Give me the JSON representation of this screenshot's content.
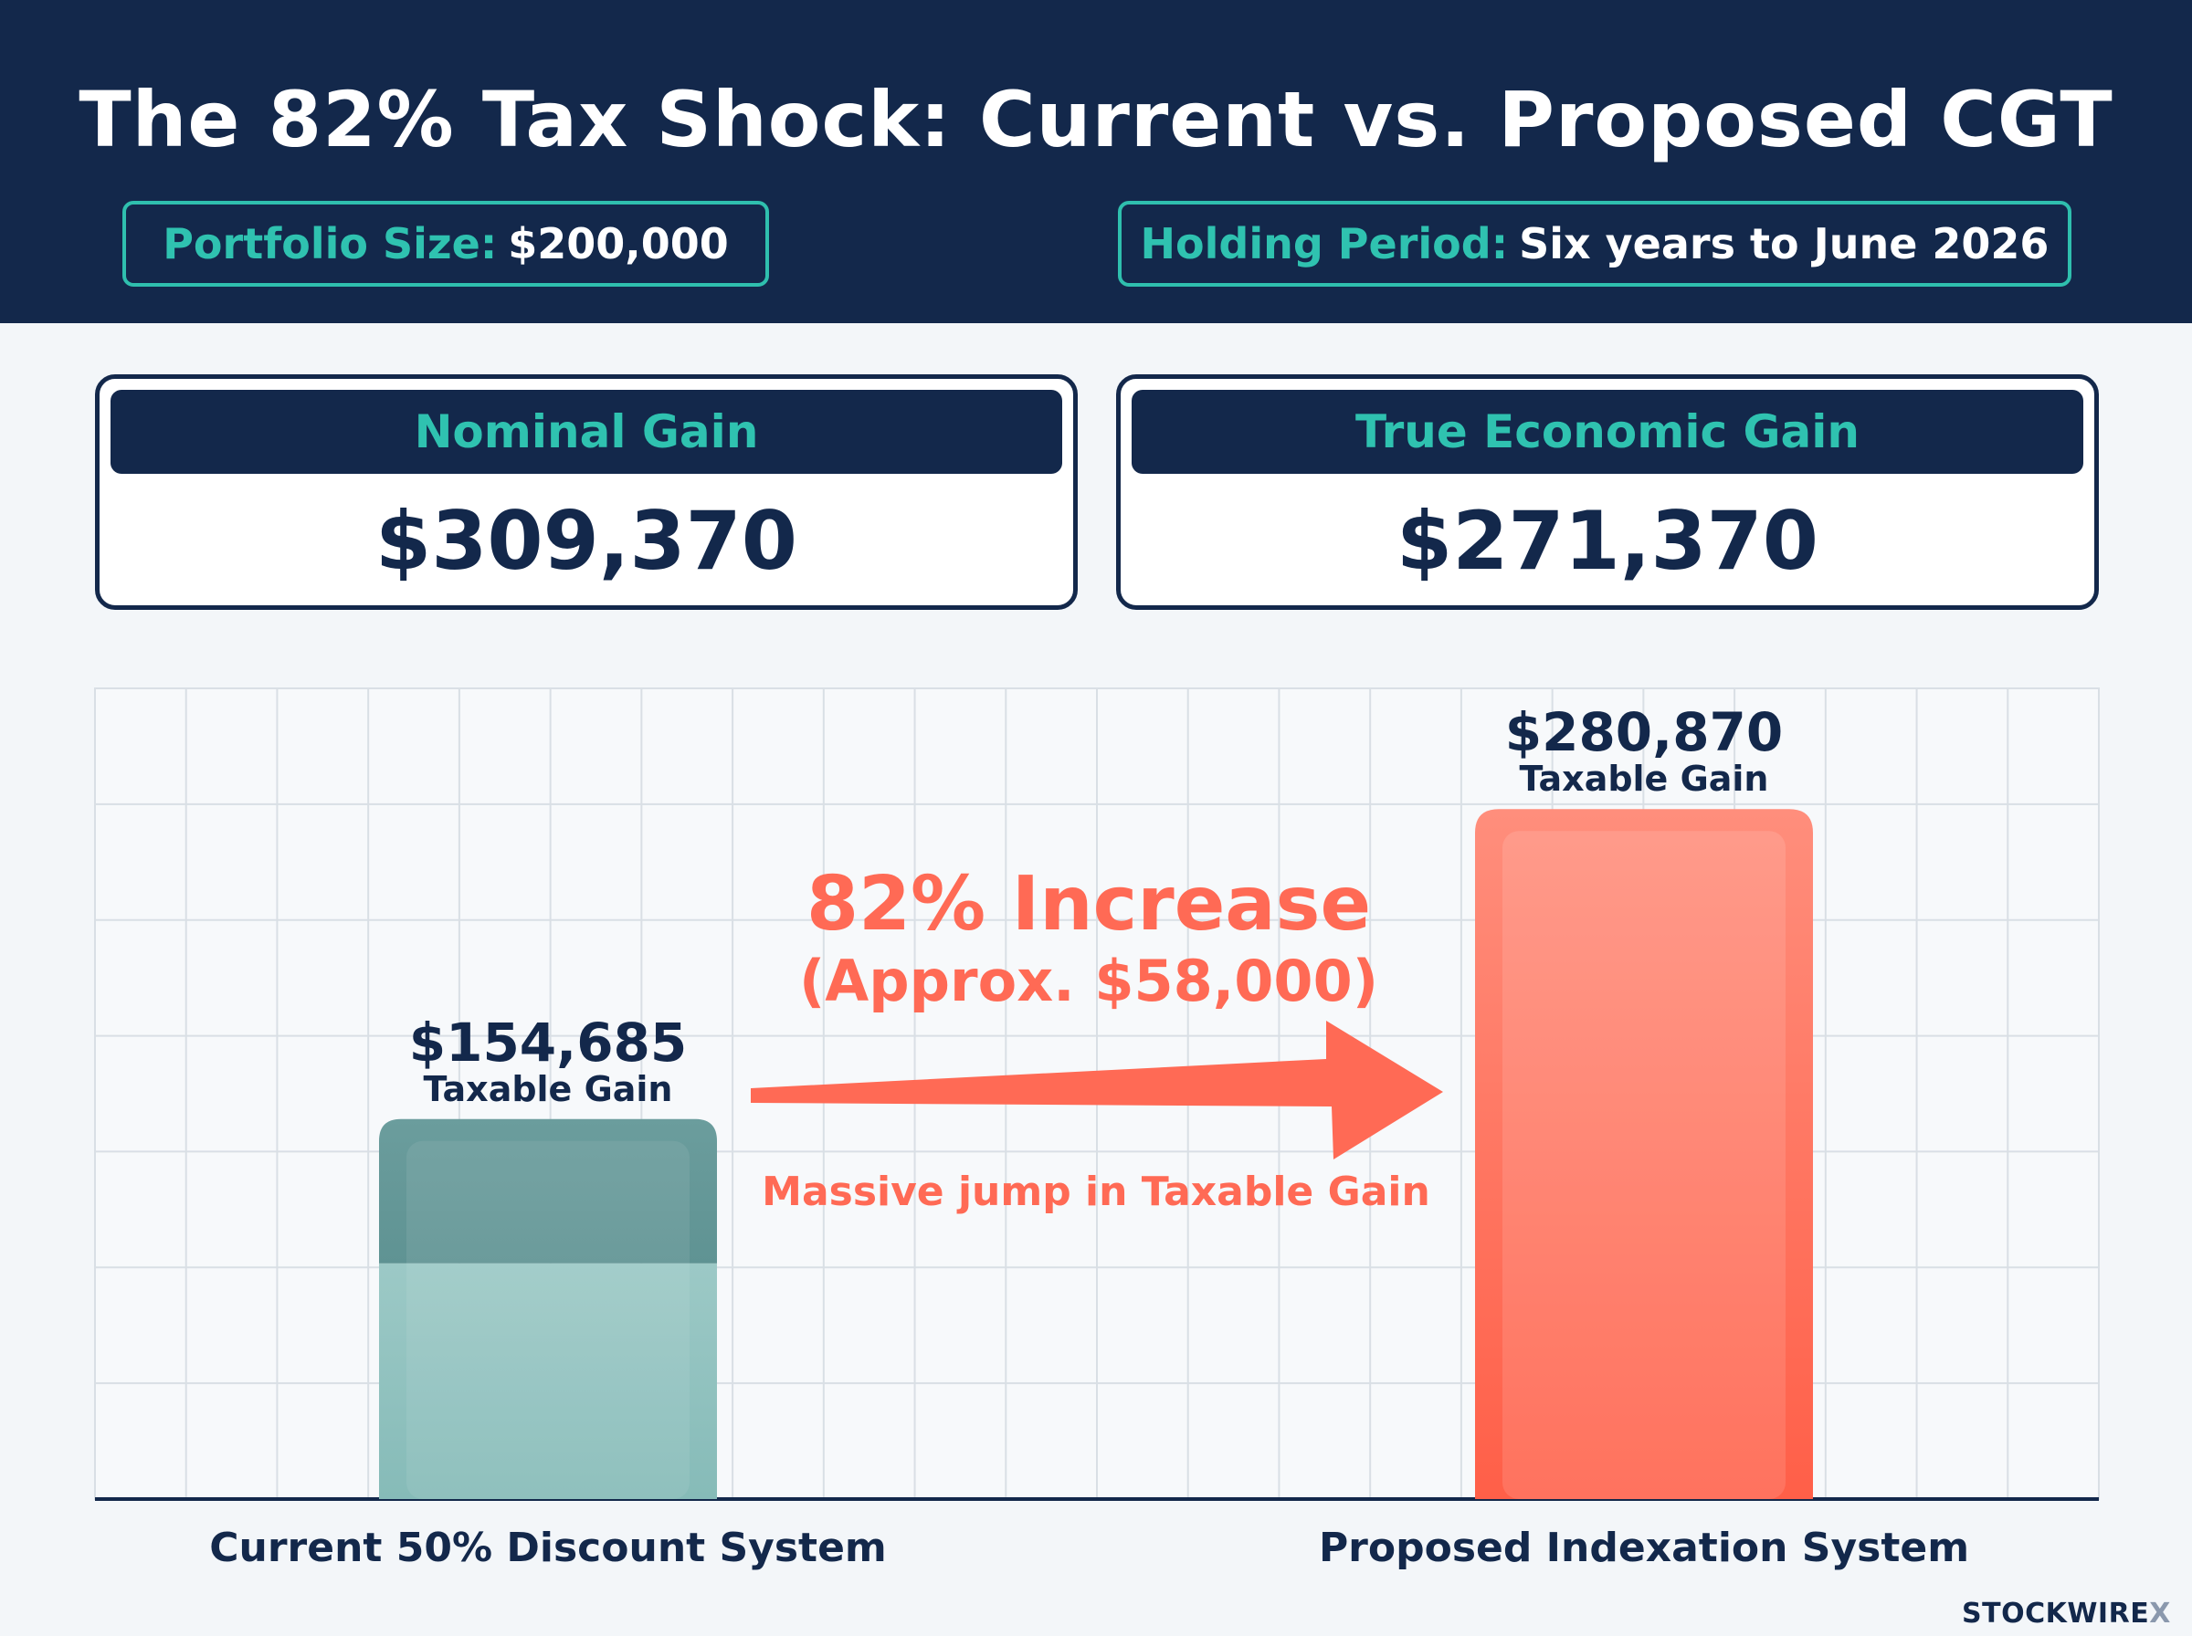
{
  "title": "The 82% Tax Shock: Current vs. Proposed CGT",
  "info": {
    "portfolio_label": "Portfolio Size:",
    "portfolio_value": "$200,000",
    "holding_label": "Holding Period:",
    "holding_value": "Six years to June 2026"
  },
  "cards": [
    {
      "label": "Nominal Gain",
      "value": "$309,370"
    },
    {
      "label": "True Economic Gain",
      "value": "$271,370"
    }
  ],
  "chart_data": {
    "type": "bar",
    "categories": [
      "Current 50% Discount System",
      "Proposed Indexation System"
    ],
    "values": [
      154685,
      280870
    ],
    "value_labels": [
      "$154,685",
      "$280,870"
    ],
    "bar_sublabel": "Taxable Gain",
    "ylim": [
      0,
      330000
    ],
    "grid": true,
    "colors": [
      "#6fa3a3",
      "#ff6a55"
    ],
    "annotation": {
      "headline": "82% Increase",
      "sub": "(Approx. $58,000)",
      "note": "Massive jump in Taxable Gain",
      "color": "#ff6a55"
    }
  },
  "watermark": {
    "brand": "STOCKWIRE",
    "mark": "X"
  }
}
